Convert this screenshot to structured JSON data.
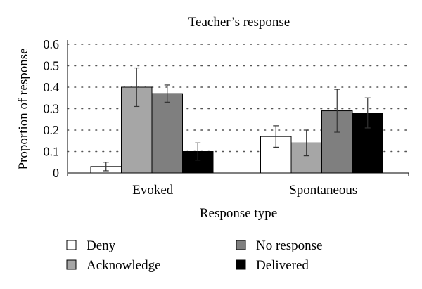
{
  "chart_data": {
    "type": "bar",
    "title": "Teacher’s response",
    "xlabel": "Response type",
    "ylabel": "Proportion of response",
    "categories": [
      "Evoked",
      "Spontaneous"
    ],
    "yticks": [
      "0",
      "0.1",
      "0.2",
      "0.3",
      "0.4",
      "0.5",
      "0.6"
    ],
    "ylim": [
      0,
      0.6
    ],
    "grid": true,
    "grid_style": "dotted",
    "legend_position": "bottom",
    "series": [
      {
        "name": "Deny",
        "color": "#ffffff",
        "values": [
          0.03,
          0.17
        ],
        "error": [
          0.02,
          0.05
        ]
      },
      {
        "name": "Acknowledge",
        "color": "#a6a6a6",
        "values": [
          0.4,
          0.14
        ],
        "error": [
          0.09,
          0.06
        ]
      },
      {
        "name": "No response",
        "color": "#7f7f7f",
        "values": [
          0.37,
          0.29
        ],
        "error": [
          0.04,
          0.1
        ]
      },
      {
        "name": "Delivered",
        "color": "#000000",
        "values": [
          0.1,
          0.28
        ],
        "error": [
          0.04,
          0.07
        ]
      }
    ]
  }
}
